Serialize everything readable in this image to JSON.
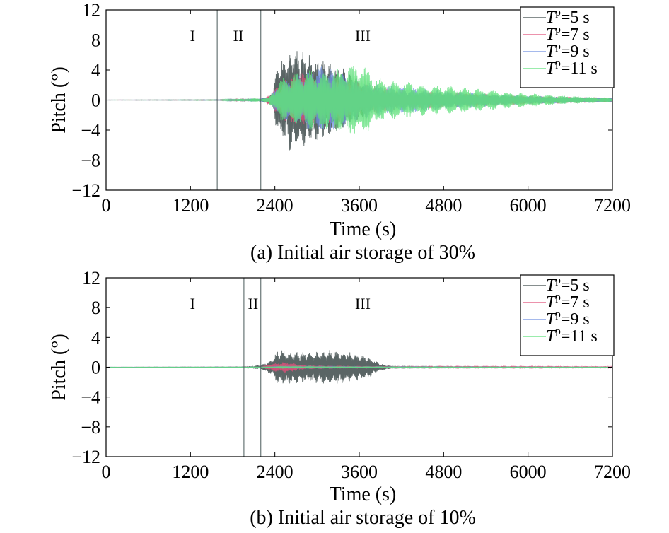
{
  "chart_data": [
    {
      "type": "line",
      "caption": "(a) Initial air storage of 30%",
      "xlabel": "Time (s)",
      "ylabel": "Pitch (°)",
      "xlim": [
        0,
        7200
      ],
      "ylim": [
        -12,
        12
      ],
      "xticks": [
        "0",
        "1200",
        "2400",
        "3600",
        "4800",
        "6000",
        "7200"
      ],
      "xtick_values": [
        0,
        1200,
        2400,
        3600,
        4800,
        6000,
        7200
      ],
      "yticks": [
        "12",
        "8",
        "4",
        "0",
        "−4",
        "−8",
        "−12"
      ],
      "ytick_values": [
        12,
        8,
        4,
        0,
        -4,
        -8,
        -12
      ],
      "regions": [
        {
          "label": "I",
          "x": 1230
        },
        {
          "label": "II",
          "x": 1880
        },
        {
          "label": "III",
          "x": 3650
        }
      ],
      "region_boundaries": [
        1580,
        2200
      ],
      "legend_position": "top-right",
      "series": [
        {
          "name": "Tp=5 s",
          "legend_main": "T",
          "legend_sub": "p",
          "legend_rest": "=5 s",
          "color": "#3d4a4a",
          "envelope": [
            [
              0,
              0.02
            ],
            [
              1600,
              0.05
            ],
            [
              2200,
              0.15
            ],
            [
              2350,
              0.8
            ],
            [
              2450,
              5.2
            ],
            [
              2650,
              7.2
            ],
            [
              2900,
              6.2
            ],
            [
              3150,
              5.0
            ],
            [
              3350,
              4.6
            ],
            [
              3550,
              3.0
            ],
            [
              3800,
              1.4
            ],
            [
              4300,
              0.9
            ],
            [
              5000,
              0.7
            ],
            [
              6000,
              0.5
            ],
            [
              7200,
              0.3
            ]
          ]
        },
        {
          "name": "Tp=7 s",
          "legend_main": "T",
          "legend_sub": "p",
          "legend_rest": "=7 s",
          "color": "#e0507a",
          "envelope": [
            [
              0,
              0.02
            ],
            [
              1600,
              0.05
            ],
            [
              2250,
              0.2
            ],
            [
              2400,
              1.5
            ],
            [
              2550,
              3.0
            ],
            [
              2800,
              3.8
            ],
            [
              3100,
              3.2
            ],
            [
              3400,
              3.0
            ],
            [
              3700,
              2.2
            ],
            [
              4100,
              1.4
            ],
            [
              5000,
              1.0
            ],
            [
              6000,
              0.6
            ],
            [
              7200,
              0.3
            ]
          ]
        },
        {
          "name": "Tp=9 s",
          "legend_main": "T",
          "legend_sub": "p",
          "legend_rest": "=9 s",
          "color": "#6f8fe0",
          "envelope": [
            [
              0,
              0.02
            ],
            [
              1600,
              0.05
            ],
            [
              2300,
              0.3
            ],
            [
              2500,
              2.5
            ],
            [
              2800,
              3.8
            ],
            [
              3100,
              4.8
            ],
            [
              3400,
              3.5
            ],
            [
              3700,
              2.5
            ],
            [
              4200,
              1.8
            ],
            [
              5000,
              1.2
            ],
            [
              6000,
              0.6
            ],
            [
              7200,
              0.3
            ]
          ]
        },
        {
          "name": "Tp=11 s",
          "legend_main": "T",
          "legend_sub": "p",
          "legend_rest": "=11 s",
          "color": "#5ee07a",
          "envelope": [
            [
              0,
              0.02
            ],
            [
              1600,
              0.05
            ],
            [
              2300,
              0.3
            ],
            [
              2500,
              3.0
            ],
            [
              2850,
              4.0
            ],
            [
              3200,
              4.2
            ],
            [
              3650,
              5.0
            ],
            [
              3900,
              2.9
            ],
            [
              4200,
              2.5
            ],
            [
              4600,
              2.0
            ],
            [
              5000,
              1.8
            ],
            [
              5500,
              1.3
            ],
            [
              6000,
              0.9
            ],
            [
              6500,
              0.6
            ],
            [
              7200,
              0.3
            ]
          ]
        }
      ]
    },
    {
      "type": "line",
      "caption": "(b) Initial air storage of 10%",
      "xlabel": "Time (s)",
      "ylabel": "Pitch (°)",
      "xlim": [
        0,
        7200
      ],
      "ylim": [
        -12,
        12
      ],
      "xticks": [
        "0",
        "1200",
        "2400",
        "3600",
        "4800",
        "6000",
        "7200"
      ],
      "xtick_values": [
        0,
        1200,
        2400,
        3600,
        4800,
        6000,
        7200
      ],
      "yticks": [
        "12",
        "8",
        "4",
        "0",
        "−4",
        "−8",
        "−12"
      ],
      "ytick_values": [
        12,
        8,
        4,
        0,
        -4,
        -8,
        -12
      ],
      "regions": [
        {
          "label": "I",
          "x": 1230
        },
        {
          "label": "II",
          "x": 2090
        },
        {
          "label": "III",
          "x": 3650
        }
      ],
      "region_boundaries": [
        1960,
        2200
      ],
      "legend_position": "top-right",
      "series": [
        {
          "name": "Tp=5 s",
          "legend_main": "T",
          "legend_sub": "p",
          "legend_rest": "=5 s",
          "color": "#3d4a4a",
          "envelope": [
            [
              0,
              0.02
            ],
            [
              1950,
              0.05
            ],
            [
              2200,
              0.3
            ],
            [
              2350,
              1.0
            ],
            [
              2450,
              2.6
            ],
            [
              2650,
              2.2
            ],
            [
              2900,
              2.0
            ],
            [
              3150,
              2.4
            ],
            [
              3400,
              2.2
            ],
            [
              3700,
              1.6
            ],
            [
              3900,
              0.5
            ],
            [
              4100,
              0.1
            ],
            [
              7200,
              0.02
            ]
          ]
        },
        {
          "name": "Tp=7 s",
          "legend_main": "T",
          "legend_sub": "p",
          "legend_rest": "=7 s",
          "color": "#e0507a",
          "envelope": [
            [
              0,
              0.02
            ],
            [
              2200,
              0.05
            ],
            [
              2350,
              0.5
            ],
            [
              2550,
              0.8
            ],
            [
              2800,
              0.3
            ],
            [
              3200,
              0.2
            ],
            [
              4000,
              0.15
            ],
            [
              5000,
              0.2
            ],
            [
              6000,
              0.2
            ],
            [
              7200,
              0.15
            ]
          ]
        },
        {
          "name": "Tp=9 s",
          "legend_main": "T",
          "legend_sub": "p",
          "legend_rest": "=9 s",
          "color": "#6f8fe0",
          "envelope": [
            [
              0,
              0.02
            ],
            [
              2300,
              0.05
            ],
            [
              2500,
              0.12
            ],
            [
              3500,
              0.08
            ],
            [
              7200,
              0.03
            ]
          ]
        },
        {
          "name": "Tp=11 s",
          "legend_main": "T",
          "legend_sub": "p",
          "legend_rest": "=11 s",
          "color": "#5ee07a",
          "envelope": [
            [
              0,
              0.02
            ],
            [
              2300,
              0.05
            ],
            [
              2500,
              0.1
            ],
            [
              3500,
              0.06
            ],
            [
              7200,
              0.03
            ]
          ]
        }
      ]
    }
  ]
}
